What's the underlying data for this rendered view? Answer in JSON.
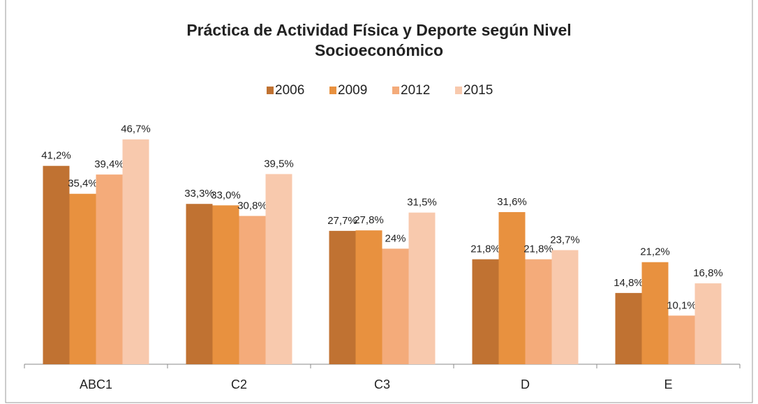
{
  "chart_data": {
    "type": "bar",
    "title": [
      "Práctica de Actividad Física y Deporte según Nivel",
      "Socioeconómico"
    ],
    "categories": [
      "ABC1",
      "C2",
      "C3",
      "D",
      "E"
    ],
    "series": [
      {
        "name": "2006",
        "color": "#c07232",
        "values": [
          41.2,
          33.3,
          27.7,
          21.8,
          14.8
        ],
        "value_labels": [
          "41,2%",
          "33,3%",
          "27,7%",
          "21,8%",
          "14,8%"
        ]
      },
      {
        "name": "2009",
        "color": "#e8913f",
        "values": [
          35.4,
          33.0,
          27.8,
          31.6,
          21.2
        ],
        "value_labels": [
          "35,4%",
          "33,0%",
          "27,8%",
          "31,6%",
          "21,2%"
        ]
      },
      {
        "name": "2012",
        "color": "#f4ab7a",
        "values": [
          39.4,
          30.8,
          24,
          21.8,
          10.1
        ],
        "value_labels": [
          "39,4%",
          "30,8%",
          "24%",
          "21,8%",
          "10,1%"
        ]
      },
      {
        "name": "2015",
        "color": "#f8c9ad",
        "values": [
          46.7,
          39.5,
          31.5,
          23.7,
          16.8
        ],
        "value_labels": [
          "46,7%",
          "39,5%",
          "31,5%",
          "23,7%",
          "16,8%"
        ]
      }
    ],
    "ylim": [
      0,
      55
    ],
    "legend": "top"
  }
}
